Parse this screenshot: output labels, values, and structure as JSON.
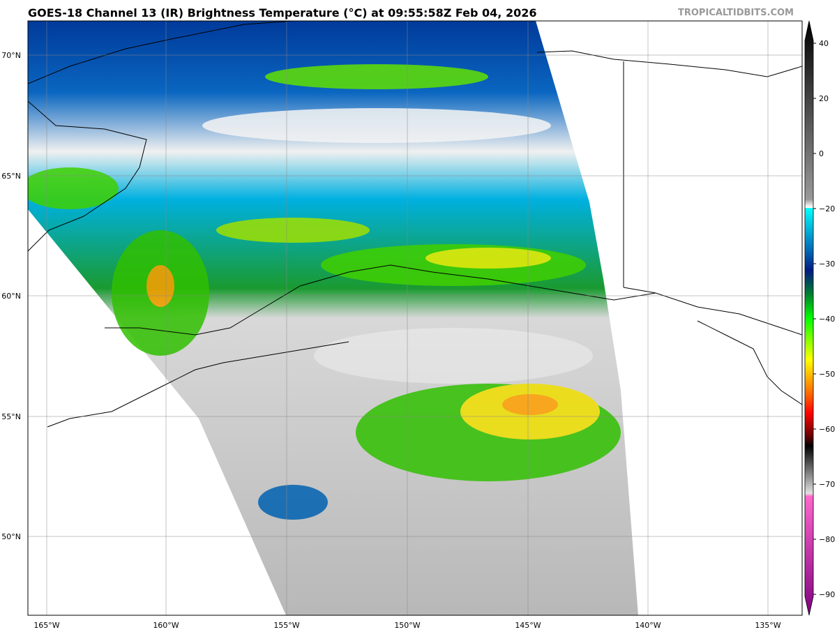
{
  "title": "GOES-18 Channel 13 (IR) Brightness Temperature (°C) at 09:55:58Z Feb 04, 2026",
  "watermark": "TROPICALTIDBITS.COM",
  "map": {
    "lat_labels": [
      "70°N",
      "65°N",
      "60°N",
      "55°N",
      "50°N"
    ],
    "lon_labels": [
      "165°W",
      "160°W",
      "155°W",
      "150°W",
      "145°W",
      "140°W",
      "135°W"
    ],
    "gridlines": true
  },
  "colorbar": {
    "ticks": [
      "40",
      "20",
      "0",
      "−20",
      "−30",
      "−40",
      "−50",
      "−60",
      "−70",
      "−80",
      "−90"
    ],
    "colors": {
      "warm_max": "#000000",
      "zero": "#d9d9d9",
      "cold_start": "#00ffff",
      "blue": "#001a80",
      "green": "#00ff00",
      "yellow": "#ffff00",
      "orange": "#ff8000",
      "red": "#ff0000",
      "black": "#000000",
      "gray": "#c8c8c8",
      "pink": "#ff66cc",
      "purple": "#800080"
    }
  }
}
